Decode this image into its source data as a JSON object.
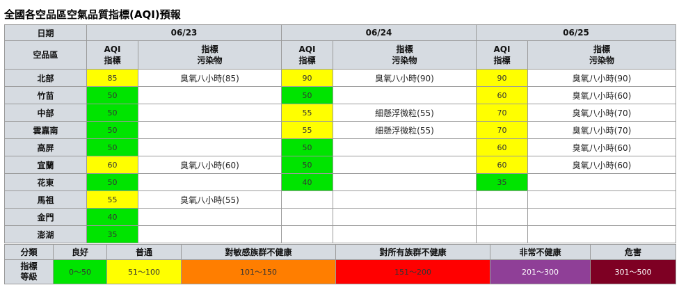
{
  "title": "全國各空品區空氣品質指標(AQI)預報",
  "header": {
    "date_label": "日期",
    "region_label": "空品區",
    "aqi_label": "AQI\n指標",
    "pollutant_label": "指標\n污染物",
    "dates": [
      "06/23",
      "06/24",
      "06/25"
    ]
  },
  "rows": [
    {
      "region": "北部",
      "days": [
        {
          "aqi": "85",
          "pol": "臭氧八小時(85)"
        },
        {
          "aqi": "90",
          "pol": "臭氧八小時(90)"
        },
        {
          "aqi": "90",
          "pol": "臭氧八小時(90)"
        }
      ]
    },
    {
      "region": "竹苗",
      "days": [
        {
          "aqi": "50",
          "pol": ""
        },
        {
          "aqi": "50",
          "pol": ""
        },
        {
          "aqi": "60",
          "pol": "臭氧八小時(60)"
        }
      ]
    },
    {
      "region": "中部",
      "days": [
        {
          "aqi": "50",
          "pol": ""
        },
        {
          "aqi": "55",
          "pol": "細懸浮微粒(55)"
        },
        {
          "aqi": "70",
          "pol": "臭氧八小時(70)"
        }
      ]
    },
    {
      "region": "雲嘉南",
      "days": [
        {
          "aqi": "50",
          "pol": ""
        },
        {
          "aqi": "55",
          "pol": "細懸浮微粒(55)"
        },
        {
          "aqi": "70",
          "pol": "臭氧八小時(70)"
        }
      ]
    },
    {
      "region": "高屏",
      "days": [
        {
          "aqi": "50",
          "pol": ""
        },
        {
          "aqi": "50",
          "pol": ""
        },
        {
          "aqi": "60",
          "pol": "臭氧八小時(60)"
        }
      ]
    },
    {
      "region": "宜蘭",
      "days": [
        {
          "aqi": "60",
          "pol": "臭氧八小時(60)"
        },
        {
          "aqi": "50",
          "pol": ""
        },
        {
          "aqi": "60",
          "pol": "臭氧八小時(60)"
        }
      ]
    },
    {
      "region": "花東",
      "days": [
        {
          "aqi": "50",
          "pol": ""
        },
        {
          "aqi": "40",
          "pol": ""
        },
        {
          "aqi": "35",
          "pol": ""
        }
      ]
    },
    {
      "region": "馬祖",
      "days": [
        {
          "aqi": "55",
          "pol": "臭氧八小時(55)"
        },
        {
          "aqi": "",
          "pol": ""
        },
        {
          "aqi": "",
          "pol": ""
        }
      ]
    },
    {
      "region": "金門",
      "days": [
        {
          "aqi": "40",
          "pol": ""
        },
        {
          "aqi": "",
          "pol": ""
        },
        {
          "aqi": "",
          "pol": ""
        }
      ]
    },
    {
      "region": "澎湖",
      "days": [
        {
          "aqi": "35",
          "pol": ""
        },
        {
          "aqi": "",
          "pol": ""
        },
        {
          "aqi": "",
          "pol": ""
        }
      ]
    }
  ],
  "legend": {
    "category_label": "分類",
    "level_label": "指標\n等級",
    "levels": [
      {
        "name": "良好",
        "range": "0～50",
        "color": "#00e400"
      },
      {
        "name": "普通",
        "range": "51～100",
        "color": "#ffff00"
      },
      {
        "name": "對敏感族群不健康",
        "range": "101～150",
        "color": "#ff7e00"
      },
      {
        "name": "對所有族群不健康",
        "range": "151～200",
        "color": "#ff0000"
      },
      {
        "name": "非常不健康",
        "range": "201～300",
        "color": "#8f3f97"
      },
      {
        "name": "危害",
        "range": "301～500",
        "color": "#7e0023"
      }
    ]
  }
}
